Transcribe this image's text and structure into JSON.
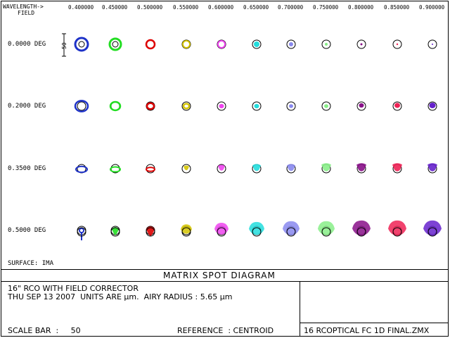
{
  "header": {
    "wavelength_label": "WAVELENGTH->",
    "field_label": "FIELD"
  },
  "wavelengths": [
    "0.400000",
    "0.450000",
    "0.500000",
    "0.550000",
    "0.600000",
    "0.650000",
    "0.700000",
    "0.750000",
    "0.800000",
    "0.850000",
    "0.900000"
  ],
  "fields": [
    "0.0000 DEG",
    "0.2000 DEG",
    "0.3500 DEG",
    "0.5000 DEG"
  ],
  "scale_bar_label": "50",
  "colors": [
    "#1e32c8",
    "#22dd22",
    "#dd0000",
    "#d4c400",
    "#ee44ee",
    "#22dddd",
    "#8888ee",
    "#88ee88",
    "#881188",
    "#ee2255",
    "#6622cc"
  ],
  "surface_label": "SURFACE: IMA",
  "title": "MATRIX SPOT DIAGRAM",
  "info": {
    "line1": "16\" RCO WITH FIELD CORRECTOR",
    "line2": "THU SEP 13 2007  UNITS ARE µm.  AIRY RADIUS : 5.65 µm",
    "scale_bar": "SCALE BAR  :     50",
    "reference": "REFERENCE  : CENTROID",
    "filename": "16 RCOPTICAL FC 1D FINAL.ZMX"
  }
}
